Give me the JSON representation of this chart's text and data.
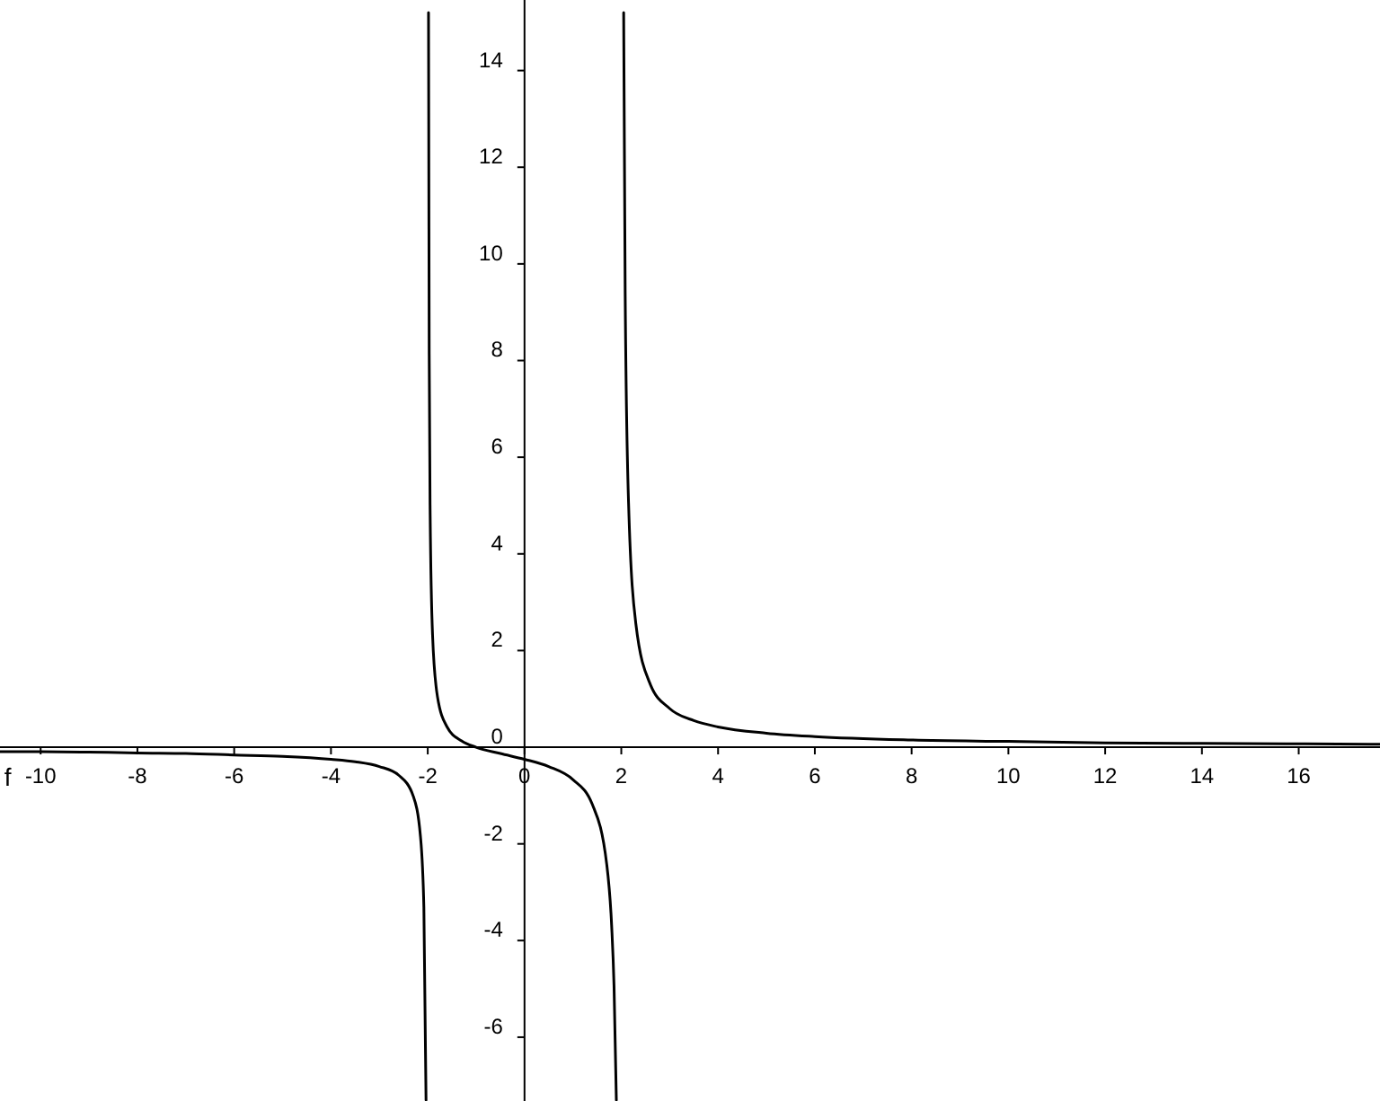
{
  "chart_data": {
    "type": "line",
    "x": [
      -10.84,
      -10,
      -9,
      -8,
      -7,
      -6,
      -5,
      -4,
      -3.5,
      -3,
      -2.6,
      -2.3,
      -2.15,
      -2.08,
      -2.035,
      -2,
      -1.984,
      -1.97,
      -1.95,
      -1.9,
      -1.8,
      -1.6,
      -1.3,
      -1,
      -0.5,
      0,
      0.5,
      1,
      1.4,
      1.7,
      1.8,
      1.85,
      1.898,
      2,
      2.049,
      2.08,
      2.15,
      2.3,
      2.6,
      3,
      3.5,
      4,
      5,
      6,
      8,
      10,
      12,
      14,
      16,
      17.68
    ],
    "series": [
      {
        "color": "#000000",
        "values": [
          -0.09,
          -0.09,
          -0.1,
          -0.12,
          -0.13,
          -0.16,
          -0.19,
          -0.25,
          -0.3,
          -0.4,
          -0.58,
          -1.01,
          -1.85,
          -3.31,
          -7.3,
          null,
          15.2,
          8.14,
          4.81,
          2.31,
          1.05,
          0.42,
          0.13,
          0,
          -0.13,
          -0.25,
          -0.4,
          -0.67,
          -1.18,
          -2.43,
          -3.68,
          -4.94,
          -7.3,
          null,
          15.2,
          9.44,
          5.06,
          2.56,
          1.3,
          0.8,
          0.55,
          0.42,
          0.29,
          0.22,
          0.15,
          0.12,
          0.09,
          0.08,
          0.07,
          0.06
        ]
      }
    ],
    "xlim": [
      -10.84,
      17.68
    ],
    "ylim": [
      -7.32,
      15.46
    ],
    "xticks": [
      -10,
      -8,
      -6,
      -4,
      -2,
      0,
      2,
      4,
      6,
      8,
      10,
      12,
      14,
      16
    ],
    "yticks": [
      -6,
      -4,
      -2,
      0,
      2,
      4,
      6,
      8,
      10,
      12,
      14
    ],
    "grid": false,
    "legend": false,
    "marker": "none",
    "line_style": "solid",
    "annotations": [
      {
        "text": "f",
        "x": -10.68,
        "y": -0.25
      }
    ]
  }
}
